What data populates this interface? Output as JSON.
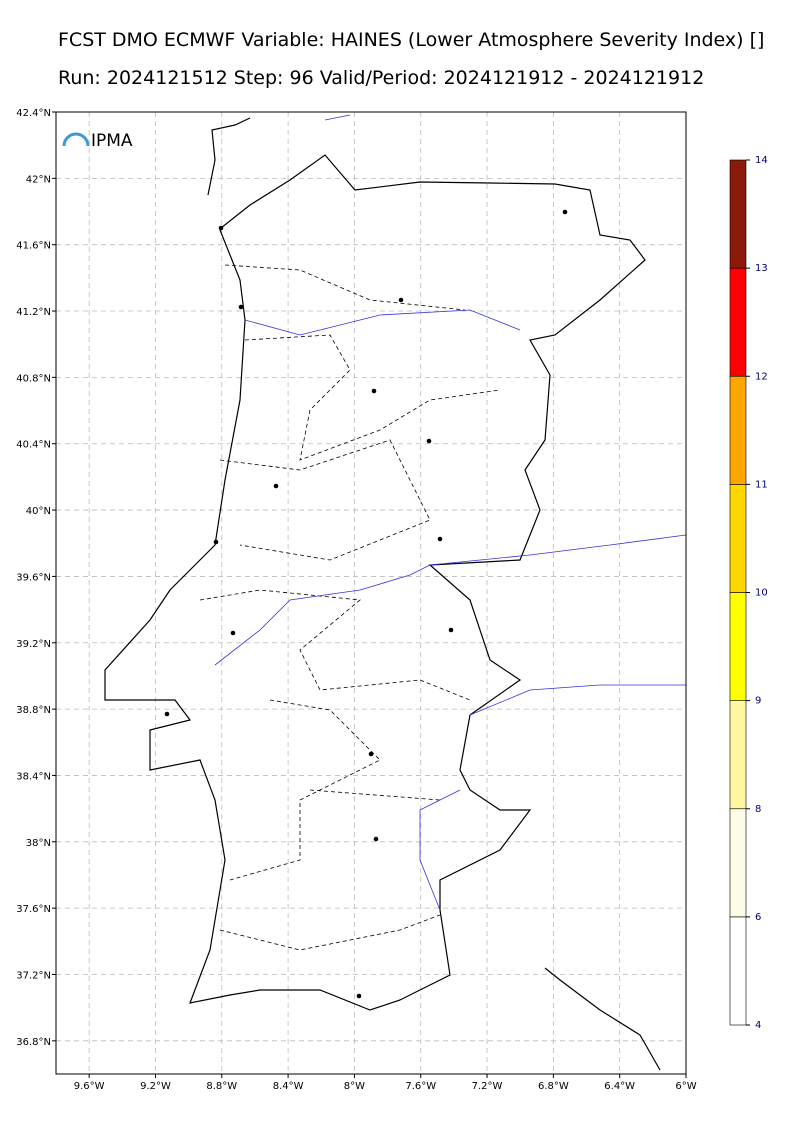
{
  "header": {
    "title": "FCST DMO ECMWF Variable: HAINES (Lower Atmosphere Severity Index) []",
    "subtitle": "Run: 2024121512 Step: 96 Valid/Period: 2024121912 - 2024121912"
  },
  "map": {
    "logo": "IPMA",
    "latlim": [
      36.6,
      42.4
    ],
    "lonlim": [
      -9.8,
      -6.0
    ],
    "lat_ticks": [
      {
        "value": 42.4,
        "label": "42.4°N"
      },
      {
        "value": 42.0,
        "label": "42°N"
      },
      {
        "value": 41.6,
        "label": "41.6°N"
      },
      {
        "value": 41.2,
        "label": "41.2°N"
      },
      {
        "value": 40.8,
        "label": "40.8°N"
      },
      {
        "value": 40.4,
        "label": "40.4°N"
      },
      {
        "value": 40.0,
        "label": "40°N"
      },
      {
        "value": 39.6,
        "label": "39.6°N"
      },
      {
        "value": 39.2,
        "label": "39.2°N"
      },
      {
        "value": 38.8,
        "label": "38.8°N"
      },
      {
        "value": 38.4,
        "label": "38.4°N"
      },
      {
        "value": 38.0,
        "label": "38°N"
      },
      {
        "value": 37.6,
        "label": "37.6°N"
      },
      {
        "value": 37.2,
        "label": "37.2°N"
      },
      {
        "value": 36.8,
        "label": "36.8°N"
      }
    ],
    "lon_ticks": [
      {
        "value": -9.6,
        "label": "9.6°W"
      },
      {
        "value": -9.2,
        "label": "9.2°W"
      },
      {
        "value": -8.8,
        "label": "8.8°W"
      },
      {
        "value": -8.4,
        "label": "8.4°W"
      },
      {
        "value": -8.0,
        "label": "8°W"
      },
      {
        "value": -7.6,
        "label": "7.6°W"
      },
      {
        "value": -7.2,
        "label": "7.2°W"
      },
      {
        "value": -6.8,
        "label": "6.8°W"
      },
      {
        "value": -6.4,
        "label": "6.4°W"
      },
      {
        "value": -6.0,
        "label": "6°W"
      }
    ]
  },
  "colorbar": {
    "levels": [
      4,
      6,
      8,
      9,
      10,
      11,
      12,
      13,
      14
    ],
    "colors": [
      "#ffffff",
      "#fffde8",
      "#fff8a0",
      "#ffff00",
      "#ffd700",
      "#ffa500",
      "#ff0000",
      "#8b1a0a"
    ]
  }
}
